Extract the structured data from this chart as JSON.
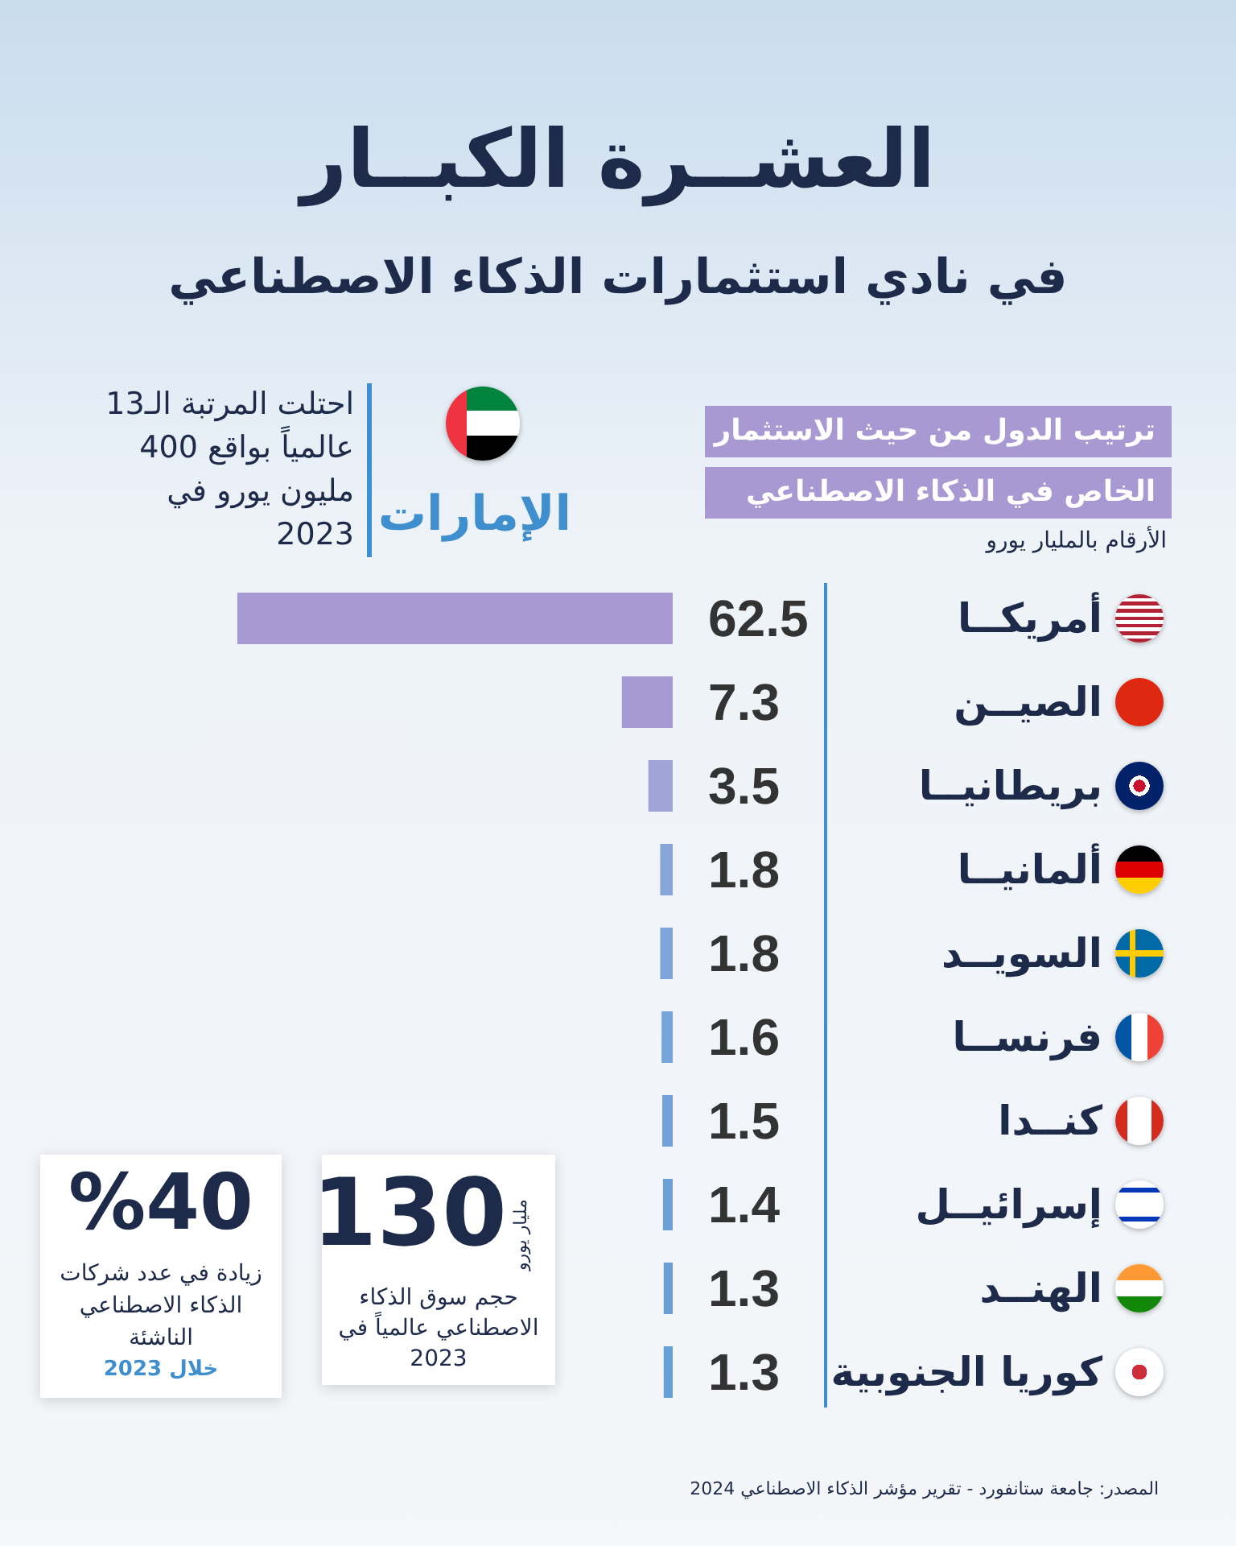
{
  "chart_data": {
    "type": "bar",
    "orientation": "horizontal",
    "title": "العشــرة الكبــار",
    "subtitle": "في نادي استثمارات الذكاء الاصطناعي",
    "xlabel": "الأرقام بالمليار يورو",
    "categories": [
      "أمريكــا",
      "الصيــن",
      "بريطانيــا",
      "ألمانيــا",
      "السويــد",
      "فرنســا",
      "كنــدا",
      "إسرائيــل",
      "الهنــد",
      "كوريا الجنوبية"
    ],
    "values": [
      62.5,
      7.3,
      3.5,
      1.8,
      1.8,
      1.6,
      1.5,
      1.4,
      1.3,
      1.3
    ],
    "colors": [
      "#a899d2",
      "#a69ad2",
      "#9fa3d6",
      "#87a6d8",
      "#7fa5d8",
      "#76a3d8",
      "#71a1d6",
      "#6ea0d5",
      "#6b9fd4",
      "#68a0d6"
    ],
    "data_labels": true,
    "annotations": [
      "ترتيب الدول من حيث الاستثمار الخاص في الذكاء الاصطناعي",
      "الإمارات",
      "احتلت المرتبة الـ13 عالمياً بواقع 400 مليون يورو في 2023",
      "130",
      "مليار يورو",
      "حجم سوق الذكاء الاصطناعي عالمياً في 2023",
      "%40",
      "زيادة في عدد شركات الذكاء الاصطناعي الناشئة",
      "خلال 2023",
      "المصدر: جامعة ستانفورد - تقرير مؤشر الذكاء الاصطناعي 2024"
    ]
  }
}
